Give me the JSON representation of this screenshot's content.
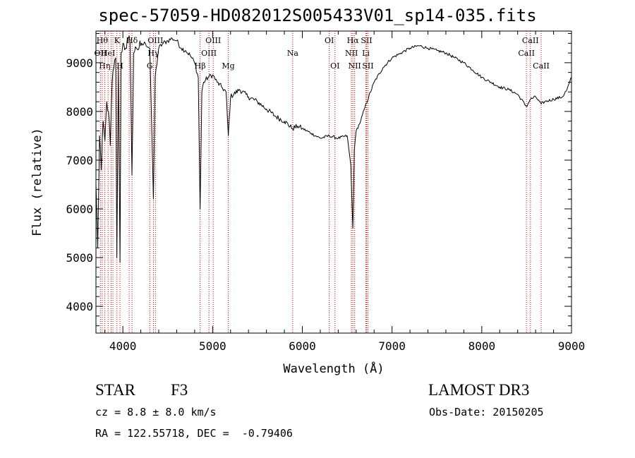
{
  "header": {
    "title": "spec-57059-HD082012S005433V01_sp14-035.fits"
  },
  "info": {
    "object_class": "STAR",
    "subclass": "F3",
    "survey": "LAMOST DR3",
    "redshift": "cz = 8.8 ± 8.0 km/s",
    "obs_date": "Obs-Date: 20150205",
    "coords": "RA = 122.55718, DEC =  -0.79406"
  },
  "chart_data": {
    "type": "line",
    "title": "spec-57059-HD082012S005433V01_sp14-035.fits",
    "xlabel": "Wavelength (Å)",
    "ylabel": "Flux (relative)",
    "xlim": [
      3700,
      9000
    ],
    "ylim": [
      3450,
      9650
    ],
    "xticks": [
      4000,
      5000,
      6000,
      7000,
      8000,
      9000
    ],
    "yticks": [
      4000,
      5000,
      6000,
      7000,
      8000,
      9000
    ],
    "grid": false,
    "line_color": "#000000",
    "marker_color": "#cc0000",
    "series": [
      {
        "x": [
          3700,
          3720,
          3740,
          3760,
          3780,
          3800,
          3820,
          3840,
          3860,
          3880,
          3900,
          3920,
          3933,
          3950,
          3968,
          3980,
          4000,
          4030,
          4060,
          4080,
          4101,
          4120,
          4150,
          4200,
          4250,
          4300,
          4320,
          4340,
          4360,
          4400,
          4450,
          4500,
          4550,
          4600,
          4650,
          4700,
          4750,
          4800,
          4840,
          4861,
          4880,
          4900,
          4950,
          5000,
          5050,
          5100,
          5150,
          5175,
          5200,
          5300,
          5400,
          5500,
          5600,
          5700,
          5800,
          5890,
          5950,
          6000,
          6100,
          6200,
          6300,
          6400,
          6500,
          6540,
          6563,
          6580,
          6600,
          6650,
          6700,
          6800,
          6900,
          7000,
          7100,
          7200,
          7300,
          7400,
          7500,
          7600,
          7700,
          7800,
          7900,
          8000,
          8100,
          8200,
          8300,
          8400,
          8498,
          8542,
          8600,
          8662,
          8700,
          8800,
          8900,
          8950,
          9000
        ],
        "y": [
          6500,
          5200,
          7500,
          6800,
          7800,
          7400,
          8200,
          8000,
          7300,
          8600,
          8900,
          9100,
          5000,
          8900,
          4900,
          9200,
          9400,
          9300,
          9500,
          9400,
          6700,
          9200,
          9300,
          9350,
          9400,
          9300,
          7800,
          6200,
          8700,
          9300,
          9400,
          9450,
          9500,
          9450,
          9300,
          9250,
          9150,
          9000,
          8700,
          6000,
          8400,
          8600,
          8700,
          8750,
          8600,
          8500,
          8400,
          7500,
          8300,
          8450,
          8300,
          8200,
          8050,
          7900,
          7800,
          7650,
          7700,
          7650,
          7550,
          7450,
          7500,
          7450,
          7500,
          6900,
          5600,
          7200,
          7600,
          7800,
          8100,
          8600,
          8900,
          9100,
          9200,
          9300,
          9350,
          9300,
          9250,
          9200,
          9100,
          9000,
          8850,
          8700,
          8600,
          8500,
          8450,
          8350,
          8100,
          8250,
          8300,
          8150,
          8200,
          8250,
          8300,
          8450,
          8700
        ]
      }
    ],
    "line_markers": [
      {
        "wl": 3750,
        "label": "OII",
        "row": 2
      },
      {
        "wl": 3770,
        "label": "Hθ",
        "row": 1
      },
      {
        "wl": 3797,
        "label": "Hη",
        "row": 3
      },
      {
        "wl": 3835,
        "label": "HeI",
        "row": 2
      },
      {
        "wl": 3869,
        "label": "",
        "row": 0
      },
      {
        "wl": 3889,
        "label": "",
        "row": 0
      },
      {
        "wl": 3934,
        "label": "K",
        "row": 1
      },
      {
        "wl": 3968,
        "label": "H",
        "row": 3
      },
      {
        "wl": 4070,
        "label": "",
        "row": 0
      },
      {
        "wl": 4102,
        "label": "Hδ",
        "row": 1
      },
      {
        "wl": 4300,
        "label": "G",
        "row": 3
      },
      {
        "wl": 4341,
        "label": "Hγ",
        "row": 2
      },
      {
        "wl": 4363,
        "label": "OIII",
        "row": 1
      },
      {
        "wl": 4861,
        "label": "Hβ",
        "row": 3
      },
      {
        "wl": 4959,
        "label": "OIII",
        "row": 2
      },
      {
        "wl": 5007,
        "label": "OIII",
        "row": 1
      },
      {
        "wl": 5175,
        "label": "Mg",
        "row": 3
      },
      {
        "wl": 5893,
        "label": "Na",
        "row": 2
      },
      {
        "wl": 6300,
        "label": "OI",
        "row": 1
      },
      {
        "wl": 6364,
        "label": "OI",
        "row": 3
      },
      {
        "wl": 6548,
        "label": "NII",
        "row": 2
      },
      {
        "wl": 6563,
        "label": "Hα",
        "row": 1
      },
      {
        "wl": 6583,
        "label": "NII",
        "row": 3
      },
      {
        "wl": 6708,
        "label": "Li",
        "row": 2
      },
      {
        "wl": 6716,
        "label": "SII",
        "row": 1
      },
      {
        "wl": 6731,
        "label": "SII",
        "row": 3
      },
      {
        "wl": 8498,
        "label": "CaII",
        "row": 2
      },
      {
        "wl": 8542,
        "label": "CaII",
        "row": 1
      },
      {
        "wl": 8662,
        "label": "CaII",
        "row": 3
      }
    ]
  }
}
